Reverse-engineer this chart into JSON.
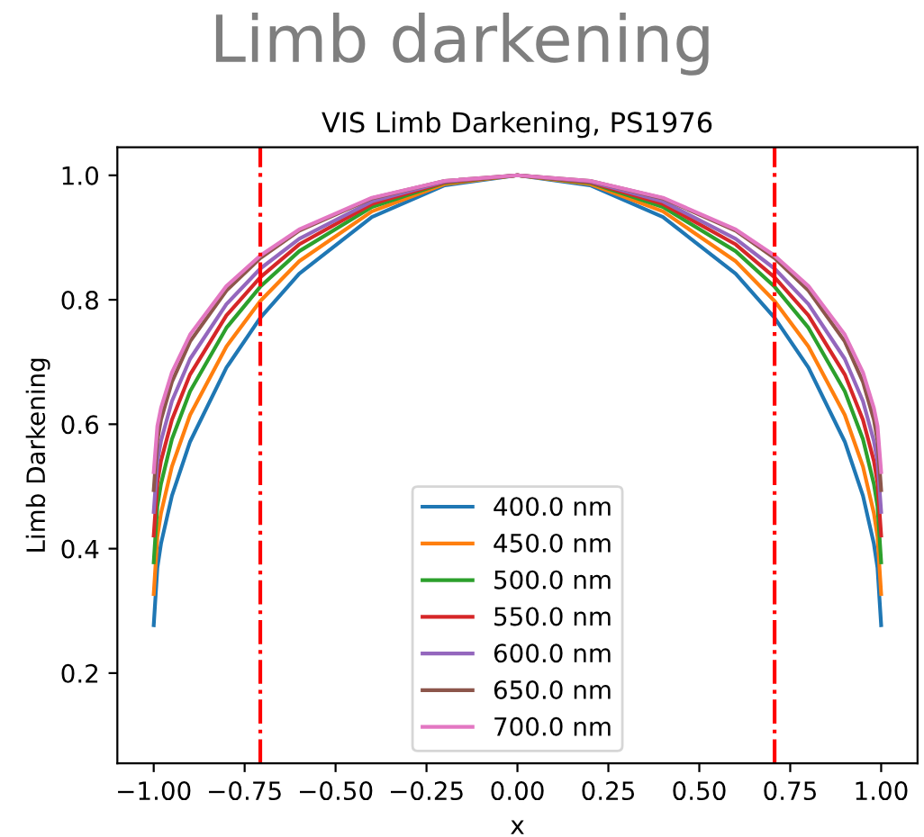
{
  "chart_data": {
    "type": "line",
    "title": "Limb darkening",
    "subtitle": "VIS Limb Darkening, PS1976",
    "xlabel": "x",
    "ylabel": "Limb Darkening",
    "x": [
      -1,
      -0.99,
      -0.98,
      -0.95,
      -0.9,
      -0.8,
      -0.707,
      -0.6,
      -0.4,
      -0.2,
      0,
      0.2,
      0.4,
      0.6,
      0.707,
      0.8,
      0.9,
      0.95,
      0.98,
      0.99,
      1
    ],
    "series": [
      {
        "name": "400.0 nm",
        "color": "#1f77b4",
        "values": [
          0.277,
          0.369,
          0.408,
          0.485,
          0.572,
          0.691,
          0.771,
          0.842,
          0.933,
          0.984,
          1.0,
          0.984,
          0.933,
          0.842,
          0.771,
          0.691,
          0.572,
          0.485,
          0.408,
          0.369,
          0.277
        ]
      },
      {
        "name": "450.0 nm",
        "color": "#ff7f0e",
        "values": [
          0.327,
          0.419,
          0.457,
          0.532,
          0.615,
          0.725,
          0.798,
          0.862,
          0.942,
          0.986,
          1.0,
          0.986,
          0.942,
          0.862,
          0.798,
          0.725,
          0.615,
          0.532,
          0.457,
          0.419,
          0.327
        ]
      },
      {
        "name": "500.0 nm",
        "color": "#2ca02c",
        "values": [
          0.378,
          0.468,
          0.504,
          0.576,
          0.653,
          0.755,
          0.821,
          0.878,
          0.949,
          0.988,
          1.0,
          0.988,
          0.949,
          0.878,
          0.821,
          0.755,
          0.653,
          0.576,
          0.504,
          0.468,
          0.378
        ]
      },
      {
        "name": "550.0 nm",
        "color": "#d62728",
        "values": [
          0.421,
          0.506,
          0.541,
          0.607,
          0.68,
          0.775,
          0.836,
          0.889,
          0.954,
          0.989,
          1.0,
          0.989,
          0.954,
          0.889,
          0.836,
          0.775,
          0.68,
          0.607,
          0.541,
          0.506,
          0.421
        ]
      },
      {
        "name": "600.0 nm",
        "color": "#9467bd",
        "values": [
          0.459,
          0.54,
          0.573,
          0.637,
          0.705,
          0.793,
          0.85,
          0.898,
          0.958,
          0.99,
          1.0,
          0.99,
          0.958,
          0.898,
          0.85,
          0.793,
          0.705,
          0.637,
          0.573,
          0.54,
          0.459
        ]
      },
      {
        "name": "650.0 nm",
        "color": "#8c564b",
        "values": [
          0.494,
          0.574,
          0.607,
          0.668,
          0.733,
          0.815,
          0.867,
          0.911,
          0.963,
          0.991,
          1.0,
          0.991,
          0.963,
          0.911,
          0.867,
          0.815,
          0.733,
          0.668,
          0.607,
          0.574,
          0.494
        ]
      },
      {
        "name": "700.0 nm",
        "color": "#e377c2",
        "values": [
          0.523,
          0.597,
          0.626,
          0.683,
          0.744,
          0.822,
          0.871,
          0.913,
          0.964,
          0.991,
          1.0,
          0.991,
          0.964,
          0.913,
          0.871,
          0.822,
          0.744,
          0.683,
          0.626,
          0.597,
          0.523
        ]
      }
    ],
    "ref_lines": [
      {
        "axis": "x",
        "value": -0.707,
        "color": "#ff0000",
        "line_style": "dashdot"
      },
      {
        "axis": "x",
        "value": 0.707,
        "color": "#ff0000",
        "line_style": "dashdot"
      }
    ],
    "xlim": [
      -1.1,
      1.1
    ],
    "ylim": [
      0.055,
      1.045
    ],
    "xticks": [
      {
        "value": -1,
        "label": "−1.00"
      },
      {
        "value": -0.75,
        "label": "−0.75"
      },
      {
        "value": -0.5,
        "label": "−0.50"
      },
      {
        "value": -0.25,
        "label": "−0.25"
      },
      {
        "value": 0,
        "label": "0.00"
      },
      {
        "value": 0.25,
        "label": "0.25"
      },
      {
        "value": 0.5,
        "label": "0.50"
      },
      {
        "value": 0.75,
        "label": "0.75"
      },
      {
        "value": 1,
        "label": "1.00"
      }
    ],
    "yticks": [
      0.2,
      0.4,
      0.6,
      0.8,
      {
        "value": 1,
        "label": "1.0"
      }
    ],
    "legend": "bottom",
    "marker": "none",
    "line_style": "solid"
  }
}
